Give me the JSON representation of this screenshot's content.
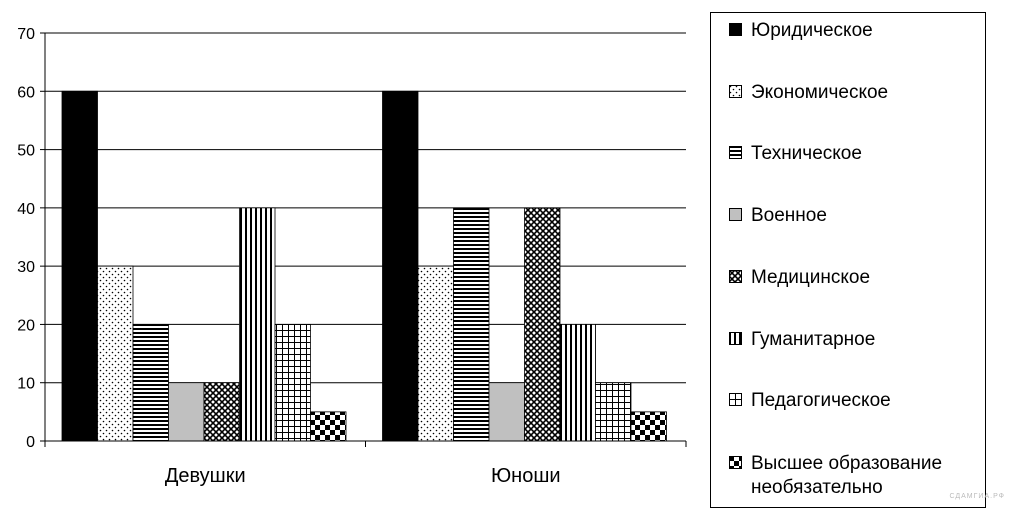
{
  "chart_data": {
    "type": "bar",
    "categories": [
      "Девушки",
      "Юноши"
    ],
    "series": [
      {
        "name": "Юридическое",
        "values": [
          60,
          60
        ]
      },
      {
        "name": "Экономическое",
        "values": [
          30,
          30
        ]
      },
      {
        "name": "Техническое",
        "values": [
          20,
          40
        ]
      },
      {
        "name": "Военное",
        "values": [
          10,
          10
        ]
      },
      {
        "name": "Медицинское",
        "values": [
          10,
          40
        ]
      },
      {
        "name": "Гуманитарное",
        "values": [
          40,
          20
        ]
      },
      {
        "name": "Педагогическое",
        "values": [
          20,
          10
        ]
      },
      {
        "name": "Высшее образование необязательно",
        "values": [
          5,
          5
        ]
      }
    ],
    "ylim": [
      0,
      70
    ],
    "yticks": [
      "0",
      "10",
      "20",
      "30",
      "40",
      "50",
      "60",
      "70"
    ],
    "grid": true,
    "legend": "right"
  },
  "watermark": "СДАМГИА.РФ"
}
